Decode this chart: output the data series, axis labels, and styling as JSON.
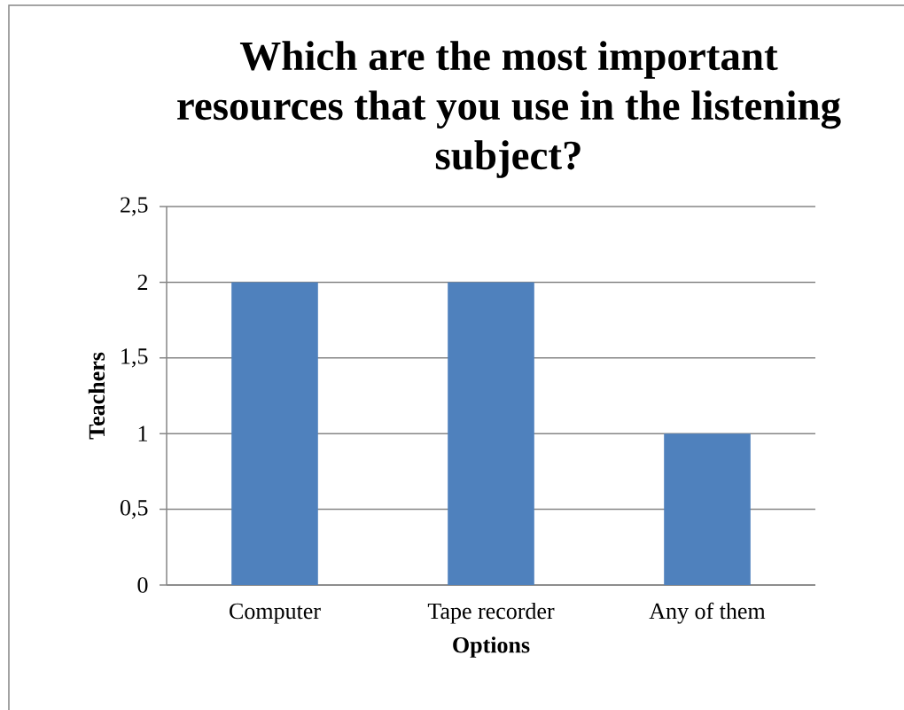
{
  "chart_data": {
    "type": "bar",
    "title": "Which are the most important resources that you use in the listening subject?",
    "xlabel": "Options",
    "ylabel": "Teachers",
    "categories": [
      "Computer",
      "Tape recorder",
      "Any of them"
    ],
    "values": [
      2,
      2,
      1
    ],
    "color": "#4f81bd",
    "ylim": [
      0,
      2.5
    ],
    "yticks": [
      0,
      {
        "value": 0.5,
        "label": "0,5"
      },
      1,
      {
        "value": 1.5,
        "label": "1,5"
      },
      2,
      {
        "value": 2.5,
        "label": "2,5"
      }
    ],
    "grid": "y"
  }
}
